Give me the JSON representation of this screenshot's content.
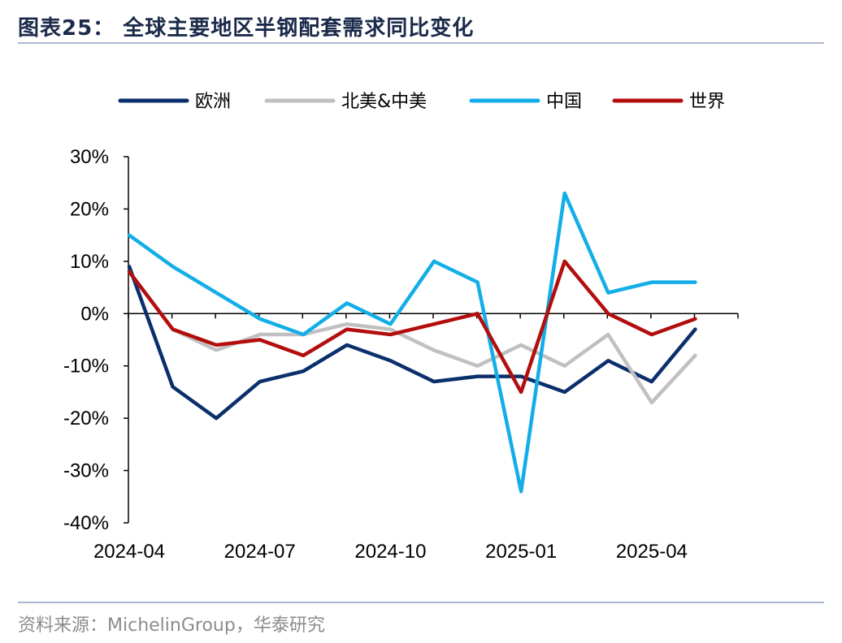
{
  "title": "图表25：  全球主要地区半钢配套需求同比变化",
  "source": "资料来源：MichelinGroup，华泰研究",
  "chart_data": {
    "type": "line",
    "x": [
      "2024-04",
      "2024-05",
      "2024-06",
      "2024-07",
      "2024-08",
      "2024-09",
      "2024-10",
      "2024-11",
      "2024-12",
      "2025-01",
      "2025-02",
      "2025-03",
      "2025-04",
      "2025-05"
    ],
    "x_tick_labels": [
      "2024-04",
      "2024-07",
      "2024-10",
      "2025-01",
      "2025-04"
    ],
    "y_tick_labels": [
      "30%",
      "20%",
      "10%",
      "0%",
      "-10%",
      "-20%",
      "-30%",
      "-40%"
    ],
    "ylim": [
      -40,
      30
    ],
    "y_unit": "%",
    "legend_position": "top",
    "grid": false,
    "series": [
      {
        "name": "欧洲",
        "color": "#0a2f6b",
        "values": [
          9,
          -14,
          -20,
          -13,
          -11,
          -6,
          -9,
          -13,
          -12,
          -12,
          -15,
          -9,
          -13,
          -3
        ]
      },
      {
        "name": "北美&中美",
        "color": "#c0c0c0",
        "values": [
          8,
          -3,
          -7,
          -4,
          -4,
          -2,
          -3,
          -7,
          -10,
          -6,
          -10,
          -4,
          -17,
          -8
        ]
      },
      {
        "name": "中国",
        "color": "#13aee8",
        "values": [
          15,
          9,
          4,
          -1,
          -4,
          2,
          -2,
          10,
          6,
          -34,
          23,
          4,
          6,
          6
        ]
      },
      {
        "name": "世界",
        "color": "#b30e0e",
        "values": [
          8,
          -3,
          -6,
          -5,
          -8,
          -3,
          -4,
          -2,
          0,
          -15,
          10,
          0,
          -4,
          -1
        ]
      }
    ]
  }
}
